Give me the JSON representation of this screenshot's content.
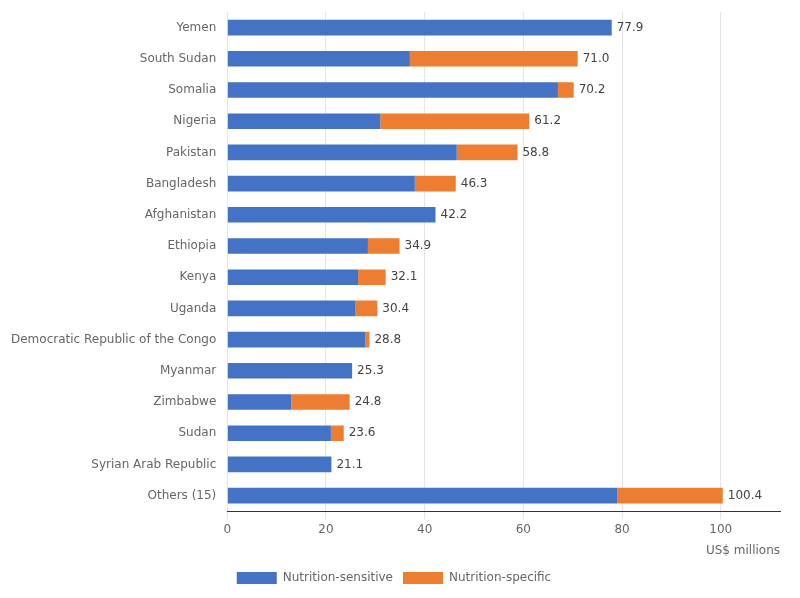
{
  "chart_data": {
    "type": "bar",
    "orientation": "horizontal",
    "stacked": true,
    "categories": [
      "Yemen",
      "South Sudan",
      "Somalia",
      "Nigeria",
      "Pakistan",
      "Bangladesh",
      "Afghanistan",
      "Ethiopia",
      "Kenya",
      "Uganda",
      "Democratic Republic of the Congo",
      "Myanmar",
      "Zimbabwe",
      "Sudan",
      "Syrian Arab Republic",
      "Others (15)"
    ],
    "series": [
      {
        "name": "Nutrition-sensitive",
        "color": "#4472C4",
        "values": [
          77.9,
          37.0,
          67.0,
          31.0,
          46.5,
          38.0,
          42.2,
          28.5,
          26.5,
          26.0,
          28.0,
          25.3,
          13.0,
          21.0,
          21.1,
          79.0
        ]
      },
      {
        "name": "Nutrition-specific",
        "color": "#ED7D31",
        "values": [
          0.0,
          34.0,
          3.2,
          30.2,
          12.3,
          8.3,
          0.0,
          6.4,
          5.6,
          4.4,
          0.8,
          0.0,
          11.8,
          2.6,
          0.0,
          21.4
        ]
      }
    ],
    "totals": {
      "values": [
        77.9,
        71.0,
        70.2,
        61.2,
        58.8,
        46.3,
        42.2,
        34.9,
        32.1,
        30.4,
        28.8,
        25.3,
        24.8,
        23.6,
        21.1,
        100.4
      ],
      "value_labels": [
        "77.9",
        "71.0",
        "70.2",
        "61.2",
        "58.8",
        "46.3",
        "42.2",
        "34.9",
        "32.1",
        "30.4",
        "28.8",
        "25.3",
        "24.8",
        "23.6",
        "21.1",
        "100.4"
      ]
    },
    "xlabel": "US$ millions",
    "xlim": [
      0,
      112
    ],
    "xticks": [
      0,
      20,
      40,
      60,
      80,
      100
    ],
    "grid": "x",
    "legend": "bottom"
  }
}
